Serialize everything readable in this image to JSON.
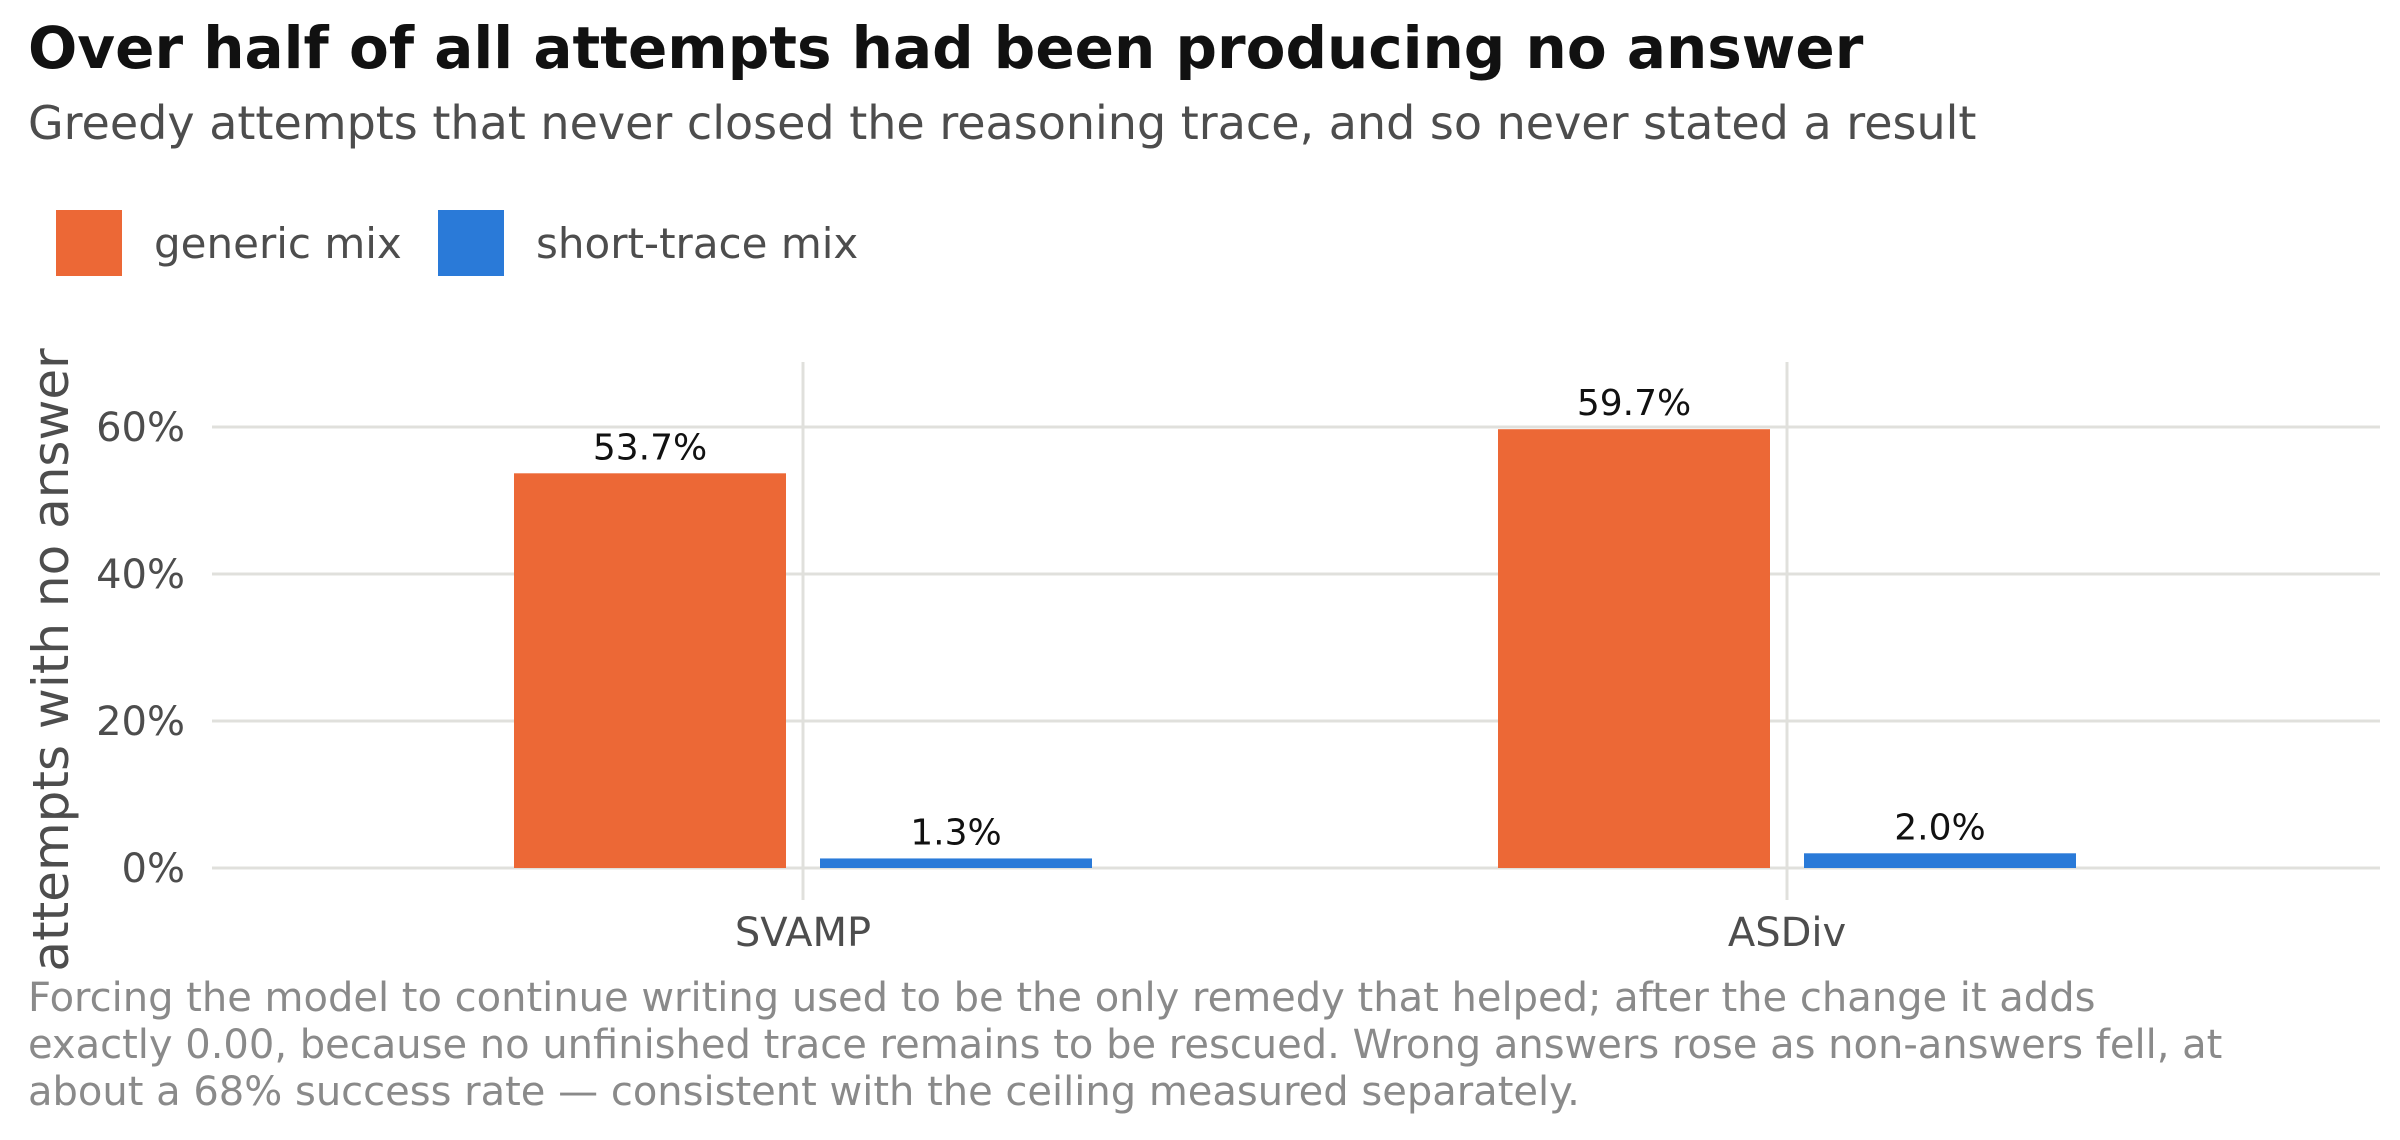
{
  "chart_data": {
    "type": "bar",
    "title": "Over half of all attempts had been producing no answer",
    "subtitle": "Greedy attempts that never closed the reasoning trace, and so never stated a result",
    "ylabel": "attempts with no answer",
    "xlabel": "",
    "categories": [
      "SVAMP",
      "ASDiv"
    ],
    "series": [
      {
        "name": "generic mix",
        "color": "#EC6836",
        "values": [
          53.7,
          59.7
        ],
        "labels": [
          "53.7%",
          "59.7%"
        ]
      },
      {
        "name": "short-trace mix",
        "color": "#2A7AD8",
        "values": [
          1.3,
          2.0
        ],
        "labels": [
          "1.3%",
          "2.0%"
        ]
      }
    ],
    "ylim": [
      0,
      70
    ],
    "yticks": [
      0,
      20,
      40,
      60
    ],
    "ytick_labels": [
      "0%",
      "20%",
      "40%",
      "60%"
    ],
    "grid": true,
    "legend_position": "top-left",
    "caption": "Forcing the model to continue writing used to be the only remedy that helped; after the change it adds exactly 0.00, because no unfinished trace remains to be rescued. Wrong answers rose as non-answers fell, at about a 68% success rate — consistent with the ceiling measured separately."
  }
}
